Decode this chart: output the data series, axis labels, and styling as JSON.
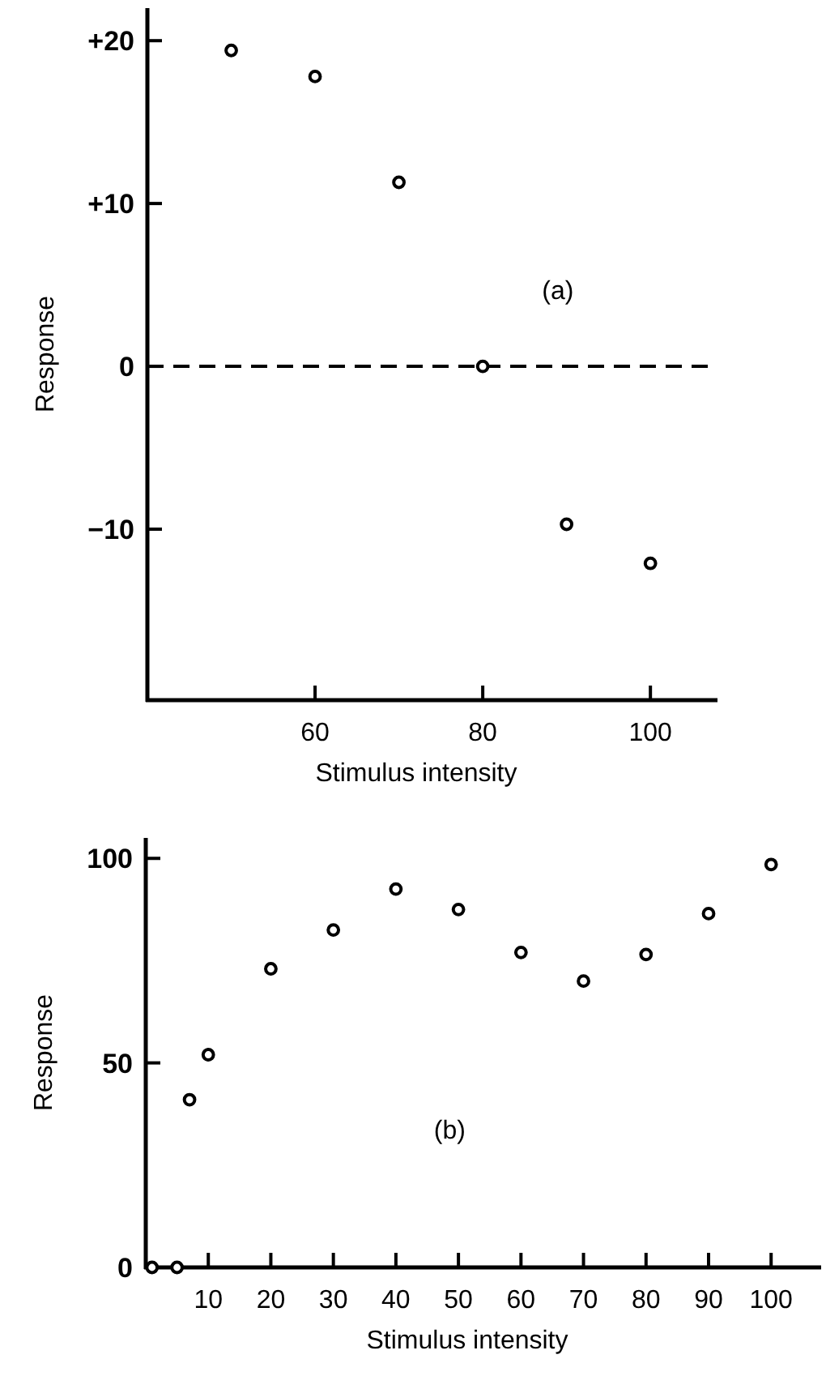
{
  "chart_data": [
    {
      "type": "scatter",
      "xlabel": "Stimulus intensity",
      "ylabel": "Response",
      "annotations": [
        "(a)"
      ],
      "x": [
        50,
        60,
        70,
        80,
        90,
        100
      ],
      "series": [
        {
          "color": "#000000",
          "values": [
            19.4,
            17.8,
            11.3,
            0,
            -9.7,
            -12.1
          ]
        }
      ],
      "xlim": [
        40,
        108
      ],
      "xticks": [
        60,
        80,
        100
      ],
      "ylim": [
        -20.5,
        22
      ],
      "yticks": [
        {
          "value": 20,
          "label": "+20"
        },
        {
          "value": 10,
          "label": "+10"
        },
        0,
        {
          "value": -10,
          "label": "−10"
        }
      ],
      "ref_lines": [
        {
          "axis": "y",
          "value": 0,
          "line_style": "dashed",
          "color": "#000000"
        }
      ],
      "marker": "circle",
      "grid": false
    },
    {
      "type": "scatter",
      "xlabel": "Stimulus intensity",
      "ylabel": "Response",
      "annotations": [
        "(b)"
      ],
      "x": [
        1,
        5,
        7,
        10,
        20,
        30,
        40,
        50,
        60,
        70,
        80,
        90,
        100
      ],
      "series": [
        {
          "color": "#000000",
          "values": [
            0,
            0,
            41,
            52,
            73,
            82.5,
            92.5,
            87.5,
            77,
            70,
            76.5,
            86.5,
            98.5
          ]
        }
      ],
      "xlim": [
        0,
        108
      ],
      "xticks": [
        10,
        20,
        30,
        40,
        50,
        60,
        70,
        80,
        90,
        100
      ],
      "ylim": [
        0,
        105
      ],
      "yticks": [
        0,
        50,
        100
      ],
      "marker": "circle",
      "grid": false
    }
  ]
}
